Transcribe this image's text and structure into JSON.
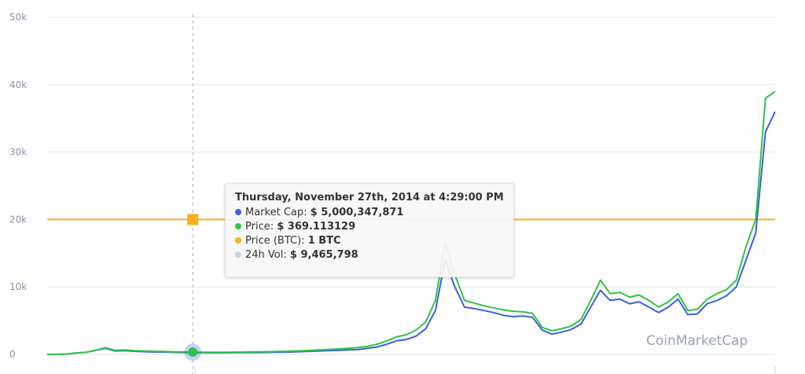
{
  "chart_data": {
    "type": "line",
    "ylim": [
      0,
      50000
    ],
    "yticks": [
      0,
      10000,
      20000,
      30000,
      40000,
      50000
    ],
    "ytick_labels": [
      "0",
      "10k",
      "20k",
      "30k",
      "40k",
      "50k"
    ],
    "grid": true,
    "crosshair_index": 15,
    "series": [
      {
        "name": "Market Cap",
        "color": "#3e5fdf",
        "values": [
          0,
          0,
          50,
          200,
          300,
          600,
          900,
          500,
          550,
          450,
          400,
          350,
          350,
          300,
          280,
          250,
          240,
          230,
          235,
          250,
          260,
          270,
          280,
          300,
          320,
          350,
          400,
          450,
          500,
          550,
          600,
          650,
          700,
          900,
          1100,
          1500,
          2000,
          2200,
          2700,
          3800,
          6500,
          14000,
          10000,
          7000,
          6800,
          6500,
          6200,
          5800,
          5600,
          5700,
          5500,
          3600,
          3000,
          3300,
          3700,
          4500,
          7000,
          9500,
          8000,
          8200,
          7500,
          7800,
          7000,
          6200,
          7000,
          8200,
          5900,
          6000,
          7500,
          8000,
          8700,
          10000,
          14000,
          18000,
          33000,
          36000
        ]
      },
      {
        "name": "Price",
        "color": "#2fc449",
        "values": [
          0,
          0,
          50,
          200,
          300,
          600,
          1000,
          600,
          650,
          550,
          500,
          450,
          420,
          380,
          360,
          330,
          310,
          300,
          300,
          320,
          340,
          360,
          380,
          400,
          430,
          470,
          520,
          580,
          650,
          720,
          800,
          900,
          1000,
          1200,
          1500,
          2000,
          2600,
          2900,
          3600,
          4800,
          8000,
          16500,
          11800,
          8000,
          7600,
          7200,
          6900,
          6600,
          6400,
          6300,
          6100,
          4000,
          3500,
          3800,
          4200,
          5200,
          8000,
          11000,
          9000,
          9200,
          8500,
          8800,
          8000,
          7000,
          7800,
          9000,
          6500,
          6700,
          8200,
          9000,
          9600,
          11000,
          16000,
          20000,
          38000,
          39000
        ]
      }
    ],
    "btc_level": 20000,
    "btc_color": "#f5b21b",
    "tooltip": {
      "title": "Thursday, November 27th, 2014 at 4:29:00 PM",
      "rows": [
        {
          "label": "Market Cap:",
          "value": "$ 5,000,347,871",
          "color": "#3e5fdf"
        },
        {
          "label": "Price:",
          "value": "$ 369.113129",
          "color": "#2fc449"
        },
        {
          "label": "Price (BTC):",
          "value": "1 BTC",
          "color": "#f5b21b"
        },
        {
          "label": "24h Vol:",
          "value": "$ 9,465,798",
          "color": "#c5d3e6"
        }
      ]
    }
  },
  "credit": "CoinMarketCap"
}
